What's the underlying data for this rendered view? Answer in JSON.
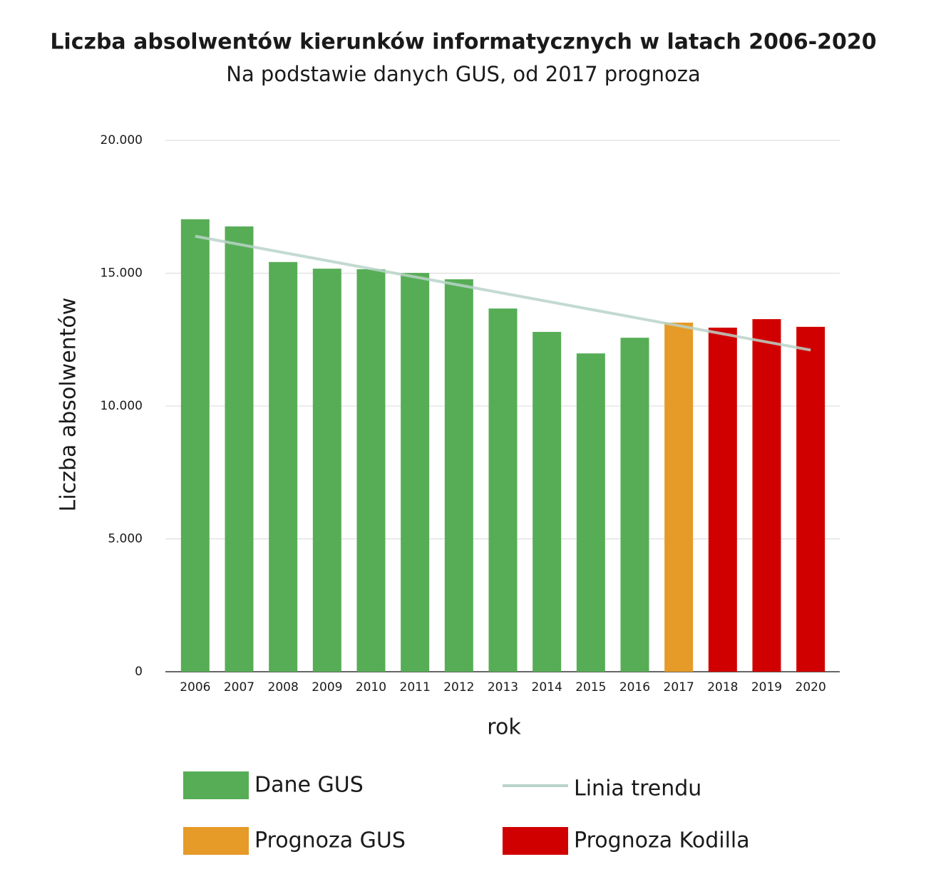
{
  "chart_data": {
    "type": "bar",
    "title": "Liczba absolwentów kierunków informatycznych w latach 2006-2020",
    "subtitle": "Na podstawie danych GUS, od 2017 prognoza",
    "x_label": "rok",
    "y_label": "Liczba absolwentów",
    "categories": [
      "2006",
      "2007",
      "2008",
      "2009",
      "2010",
      "2011",
      "2012",
      "2013",
      "2014",
      "2015",
      "2016",
      "2017",
      "2018",
      "2019",
      "2020"
    ],
    "series": [
      {
        "name": "Dane GUS",
        "color": "#57ad56",
        "type": "bar",
        "values": [
          17030,
          16760,
          15420,
          15170,
          15150,
          15010,
          14770,
          13670,
          12790,
          11980,
          12570,
          null,
          null,
          null,
          null
        ]
      },
      {
        "name": "Prognoza GUS",
        "color": "#e69a27",
        "type": "bar",
        "values": [
          null,
          null,
          null,
          null,
          null,
          null,
          null,
          null,
          null,
          null,
          null,
          13140,
          null,
          null,
          null
        ]
      },
      {
        "name": "Prognoza Kodilla",
        "color": "#d10000",
        "type": "bar",
        "values": [
          null,
          null,
          null,
          null,
          null,
          null,
          null,
          null,
          null,
          null,
          null,
          null,
          12950,
          13270,
          12980
        ]
      },
      {
        "name": "Linia trendu",
        "color": "#b8d4c8",
        "type": "line",
        "values": [
          16390,
          16084,
          15778,
          15472,
          15166,
          14860,
          14554,
          14248,
          13942,
          13636,
          13330,
          13024,
          12718,
          12412,
          12106
        ]
      }
    ],
    "ylim": [
      0,
      20000
    ],
    "yticks": [
      0,
      {
        "value": 5000,
        "label": "5.000"
      },
      {
        "value": 10000,
        "label": "10.000"
      },
      {
        "value": 15000,
        "label": "15.000"
      },
      {
        "value": 20000,
        "label": "20.000"
      }
    ],
    "grid": true,
    "legend": "bottom"
  }
}
